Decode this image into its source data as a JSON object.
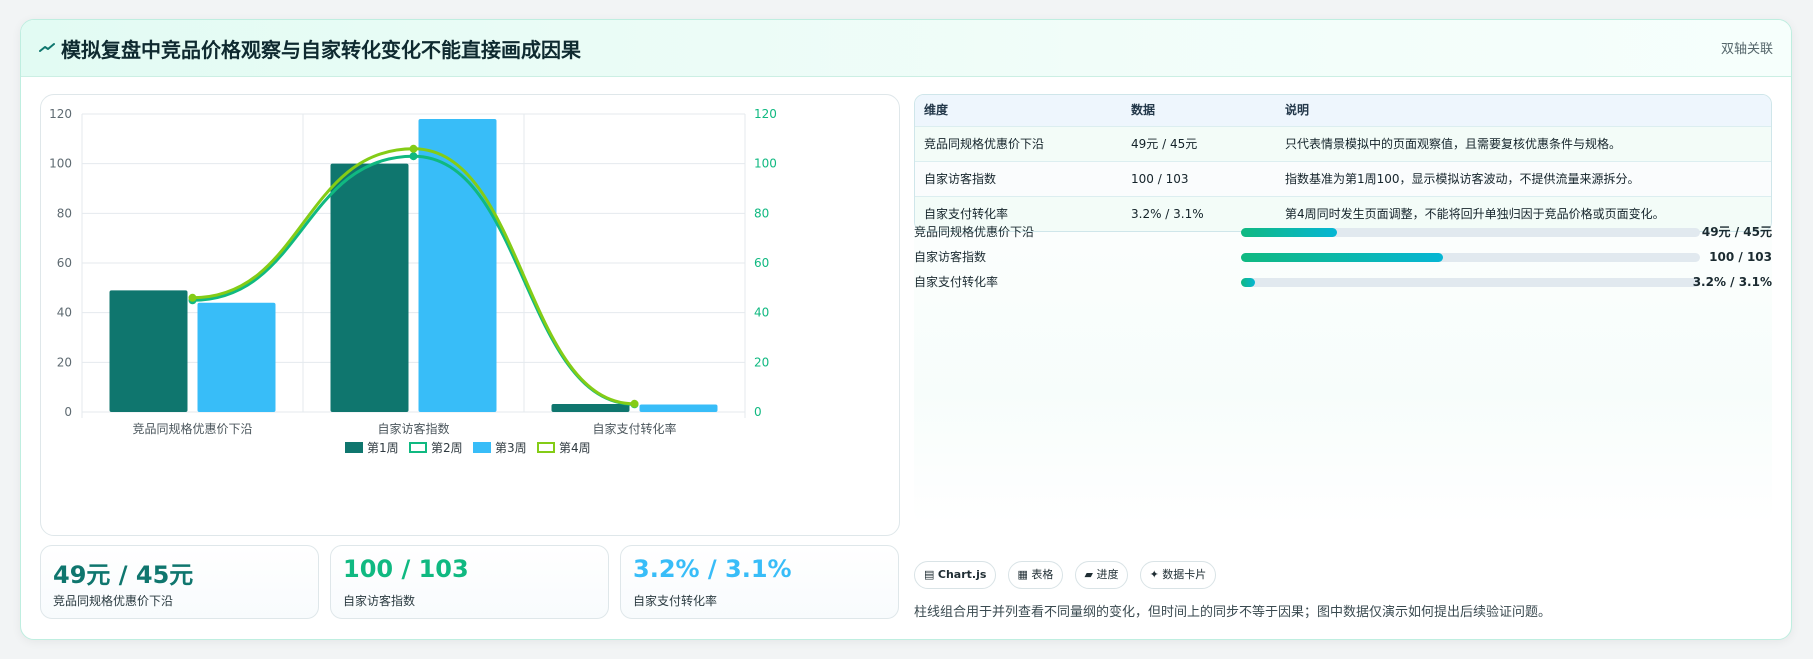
{
  "header": {
    "title": "模拟复盘中竞品价格观察与自家转化变化不能直接画成因果",
    "badge": "双轴关联",
    "icon": "trend-icon"
  },
  "colors": {
    "week1": "#0f766e",
    "week2": "#10b981",
    "week3": "#38bdf8",
    "week4": "#84cc16",
    "accent": "#10b981"
  },
  "chart_data": {
    "type": "bar",
    "categories": [
      "竞品同规格优惠价下沿",
      "自家访客指数",
      "自家支付转化率"
    ],
    "series": [
      {
        "name": "第1周",
        "type": "bar",
        "values": [
          49,
          100,
          3.2
        ]
      },
      {
        "name": "第2周",
        "type": "line",
        "values": [
          45,
          103,
          3.1
        ]
      },
      {
        "name": "第3周",
        "type": "bar",
        "values": [
          44,
          118,
          3.0
        ]
      },
      {
        "name": "第4周",
        "type": "line",
        "values": [
          46,
          106,
          3.3
        ]
      }
    ],
    "ylim_left": [
      0,
      120
    ],
    "ylim_right": [
      0,
      120
    ],
    "yticks": [
      0,
      20,
      40,
      60,
      80,
      100,
      120
    ],
    "grid": true,
    "legend": "bottom"
  },
  "table": {
    "headers": [
      "维度",
      "数据",
      "说明"
    ],
    "rows": [
      [
        "竞品同规格优惠价下沿",
        "49元 / 45元",
        "只代表情景模拟中的页面观察值，且需要复核优惠条件与规格。"
      ],
      [
        "自家访客指数",
        "100 / 103",
        "指数基准为第1周100，显示模拟访客波动，不提供流量来源拆分。"
      ],
      [
        "自家支付转化率",
        "3.2% / 3.1%",
        "第4周同时发生页面调整，不能将回升单独归因于竞品价格或页面变化。"
      ]
    ]
  },
  "progress": [
    {
      "label": "竞品同规格优惠价下沿",
      "value": "49元 / 45元",
      "fraction": 0.21
    },
    {
      "label": "自家访客指数",
      "value": "100 / 103",
      "fraction": 0.44
    },
    {
      "label": "自家支付转化率",
      "value": "3.2% / 3.1%",
      "fraction": 0.03
    }
  ],
  "kpis": [
    {
      "value": "49元 / 45元",
      "label": "竞品同规格优惠价下沿",
      "color": "#0f766e"
    },
    {
      "value": "100 / 103",
      "label": "自家访客指数",
      "color": "#10b981"
    },
    {
      "value": "3.2% / 3.1%",
      "label": "自家支付转化率",
      "color": "#38bdf8"
    }
  ],
  "tags": [
    {
      "icon": "chart-icon",
      "glyph": "▤",
      "label": "Chart.js"
    },
    {
      "icon": "table-icon",
      "glyph": "▦",
      "label": "表格"
    },
    {
      "icon": "progress-icon",
      "glyph": "▰",
      "label": "进度"
    },
    {
      "icon": "sparkle-icon",
      "glyph": "✦",
      "label": "数据卡片"
    }
  ],
  "note": "柱线组合用于并列查看不同量纲的变化，但时间上的同步不等于因果；图中数据仅演示如何提出后续验证问题。"
}
